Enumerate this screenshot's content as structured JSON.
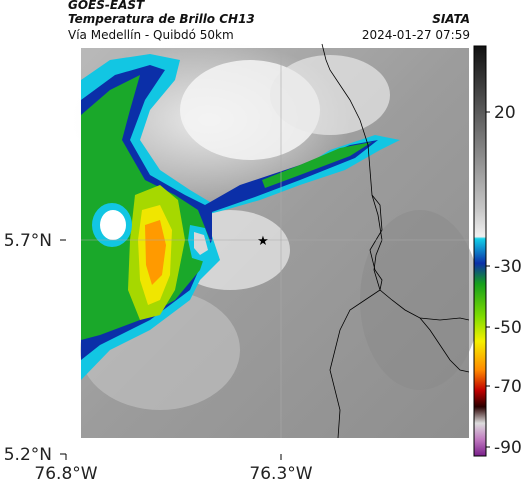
{
  "header": {
    "satellite": "GOES-EAST",
    "product": "Temperatura de Brillo CH13",
    "agency": "SIATA",
    "route": "Vía Medellín - Quibdó 50km",
    "datetime": "2024-01-27 07:59"
  },
  "map": {
    "lat_ticks": [
      "5.7°N",
      "5.2°N"
    ],
    "lon_ticks": [
      "76.8°W",
      "76.3°W"
    ],
    "marker": "star-icon"
  },
  "colorbar": {
    "ticks": [
      "20",
      "-30",
      "-50",
      "-70",
      "-90"
    ],
    "colors": {
      "dark": "#111111",
      "gray_light": "#e6e6e6",
      "cyan": "#12b7d8",
      "blue": "#0b2fa8",
      "green": "#22b024",
      "yellow": "#f5f000",
      "orange": "#ff8a00",
      "red": "#b00000",
      "magenta": "#b03aa8"
    }
  }
}
